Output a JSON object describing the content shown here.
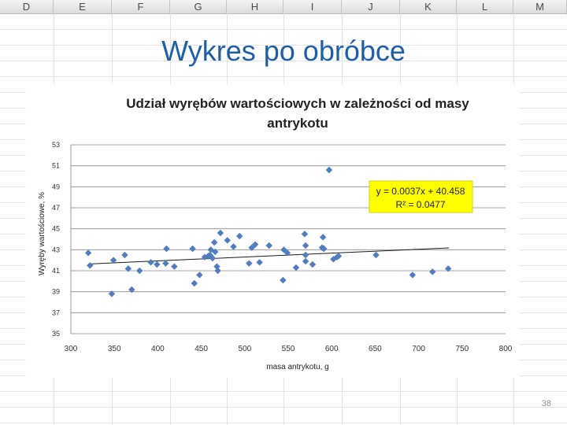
{
  "spreadsheet": {
    "columns": [
      "D",
      "E",
      "F",
      "G",
      "H",
      "I",
      "J",
      "K",
      "L",
      "M"
    ]
  },
  "slide": {
    "title": "Wykres po obróbce",
    "page_number": "38"
  },
  "chart_data": {
    "type": "scatter",
    "title_line1": "Udział wyrębów wartościowych w zależności od masy",
    "title_line2": "antrykotu",
    "xlabel": "masa antrykotu, g",
    "ylabel": "Wyręby wartościowe, %",
    "xlim": [
      300,
      800
    ],
    "ylim": [
      35,
      53
    ],
    "xticks": [
      "300",
      "350",
      "400",
      "450",
      "500",
      "550",
      "600",
      "650",
      "700",
      "750",
      "800"
    ],
    "yticks": [
      "35",
      "37",
      "39",
      "41",
      "43",
      "45",
      "47",
      "49",
      "51",
      "53"
    ],
    "grid": true,
    "equation": "y = 0.0037x + 40.458",
    "r_squared": "R² = 0.0477",
    "trendline": {
      "slope": 0.0037,
      "intercept": 40.458,
      "x_range": [
        320,
        735
      ]
    },
    "colors": {
      "marker": "#4f7dbf",
      "trendline": "#1a1a1a",
      "equation_box": "#ffff00",
      "title": "#1f5fa6"
    },
    "points": [
      [
        320,
        42.7
      ],
      [
        322,
        41.5
      ],
      [
        347,
        38.8
      ],
      [
        349,
        42.0
      ],
      [
        362,
        42.5
      ],
      [
        366,
        41.2
      ],
      [
        370,
        39.2
      ],
      [
        379,
        41.0
      ],
      [
        392,
        41.8
      ],
      [
        399,
        41.6
      ],
      [
        409,
        41.7
      ],
      [
        410,
        43.1
      ],
      [
        419,
        41.4
      ],
      [
        440,
        43.1
      ],
      [
        442,
        39.8
      ],
      [
        448,
        40.6
      ],
      [
        454,
        42.3
      ],
      [
        458,
        42.4
      ],
      [
        460,
        42.5
      ],
      [
        461,
        43.0
      ],
      [
        463,
        42.2
      ],
      [
        465,
        43.7
      ],
      [
        466,
        42.8
      ],
      [
        468,
        41.4
      ],
      [
        469,
        41.0
      ],
      [
        472,
        44.6
      ],
      [
        480,
        43.9
      ],
      [
        487,
        43.3
      ],
      [
        494,
        44.3
      ],
      [
        505,
        41.7
      ],
      [
        508,
        43.2
      ],
      [
        512,
        43.5
      ],
      [
        517,
        41.8
      ],
      [
        528,
        43.4
      ],
      [
        544,
        40.1
      ],
      [
        545,
        43.0
      ],
      [
        549,
        42.7
      ],
      [
        559,
        41.3
      ],
      [
        569,
        44.5
      ],
      [
        570,
        43.4
      ],
      [
        570,
        42.5
      ],
      [
        570,
        41.9
      ],
      [
        578,
        41.6
      ],
      [
        589,
        43.2
      ],
      [
        590,
        44.2
      ],
      [
        591,
        43.1
      ],
      [
        597,
        50.6
      ],
      [
        602,
        42.1
      ],
      [
        606,
        42.3
      ],
      [
        608,
        42.4
      ],
      [
        651,
        42.5
      ],
      [
        693,
        40.6
      ],
      [
        716,
        40.9
      ],
      [
        734,
        41.2
      ]
    ]
  }
}
